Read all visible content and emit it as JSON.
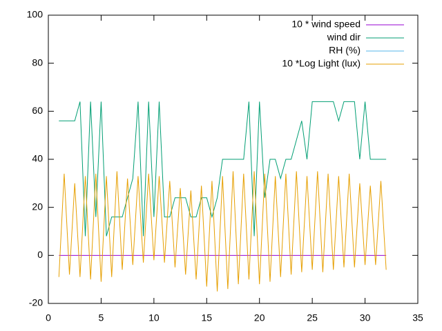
{
  "chart_data": {
    "type": "line",
    "x": [
      1,
      1.5,
      2,
      2.5,
      3,
      3.5,
      4,
      4.5,
      5,
      5.5,
      6,
      6.5,
      7,
      7.5,
      8,
      8.5,
      9,
      9.5,
      10,
      10.5,
      11,
      11.5,
      12,
      12.5,
      13,
      13.5,
      14,
      14.5,
      15,
      15.5,
      16,
      16.5,
      17,
      17.5,
      18,
      18.5,
      19,
      19.5,
      20,
      20.5,
      21,
      21.5,
      22,
      22.5,
      23,
      23.5,
      24,
      24.5,
      25,
      25.5,
      26,
      26.5,
      27,
      27.5,
      28,
      28.5,
      29,
      29.5,
      30,
      30.5,
      31,
      31.5,
      32
    ],
    "series": [
      {
        "name": "10 * wind speed",
        "color": "#9400d3",
        "values": [
          0,
          0,
          0,
          0,
          0,
          0,
          0,
          0,
          0,
          0,
          0,
          0,
          0,
          0,
          0,
          0,
          0,
          0,
          0,
          0,
          0,
          0,
          0,
          0,
          0,
          0,
          0,
          0,
          0,
          0,
          0,
          0,
          0,
          0,
          0,
          0,
          0,
          0,
          0,
          0,
          0,
          0,
          0,
          0,
          0,
          0,
          0,
          0,
          0,
          0,
          0,
          0,
          0,
          0,
          0,
          0,
          0,
          0,
          0,
          0,
          0,
          0,
          0
        ]
      },
      {
        "name": "wind dir",
        "color": "#009e73",
        "values": [
          56,
          56,
          56,
          56,
          64,
          8,
          64,
          16,
          64,
          8,
          16,
          16,
          16,
          24,
          32,
          64,
          8,
          64,
          16,
          64,
          16,
          16,
          24,
          24,
          24,
          16,
          16,
          24,
          24,
          16,
          24,
          40,
          40,
          40,
          40,
          40,
          64,
          8,
          64,
          24,
          40,
          40,
          32,
          40,
          40,
          48,
          56,
          40,
          64,
          64,
          64,
          64,
          64,
          56,
          64,
          64,
          64,
          40,
          64,
          40,
          40,
          40,
          40
        ]
      },
      {
        "name": "RH (%)",
        "color": "#56b4e9",
        "values": [
          null,
          null,
          null,
          null,
          null,
          null,
          null,
          null,
          null,
          null,
          null,
          null,
          null,
          null,
          null,
          null,
          null,
          null,
          null,
          null,
          null,
          null,
          null,
          null,
          null,
          null,
          null,
          null,
          null,
          null,
          null,
          null,
          null,
          null,
          null,
          null,
          null,
          null,
          null,
          null,
          null,
          null,
          null,
          null,
          null,
          null,
          null,
          null,
          null,
          null,
          null,
          null,
          null,
          null,
          null,
          null,
          null,
          null,
          null,
          null,
          null,
          null,
          null
        ]
      },
      {
        "name": "10 *Log Light (lux)",
        "color": "#e69f00",
        "values": [
          -9,
          34,
          -8,
          30,
          -9,
          33,
          -10,
          34,
          -11,
          33,
          -9,
          35,
          -6,
          32,
          -4,
          33,
          -3,
          34,
          -2,
          33,
          -3,
          31,
          -5,
          28,
          -8,
          27,
          -10,
          29,
          -13,
          31,
          -15,
          33,
          -14,
          35,
          -12,
          34,
          -10,
          35,
          -12,
          34,
          -11,
          33,
          -9,
          34,
          -8,
          35,
          -7,
          33,
          -6,
          35,
          -7,
          34,
          -6,
          33,
          -5,
          34,
          -5,
          30,
          -4,
          29,
          -4,
          31,
          -6
        ]
      }
    ],
    "xlim": [
      0,
      35
    ],
    "xticks": [
      0,
      5,
      10,
      15,
      20,
      25,
      30,
      35
    ],
    "ylim": [
      -20,
      100
    ],
    "yticks": [
      -20,
      0,
      20,
      40,
      60,
      80,
      100
    ],
    "legend": "top-right"
  }
}
